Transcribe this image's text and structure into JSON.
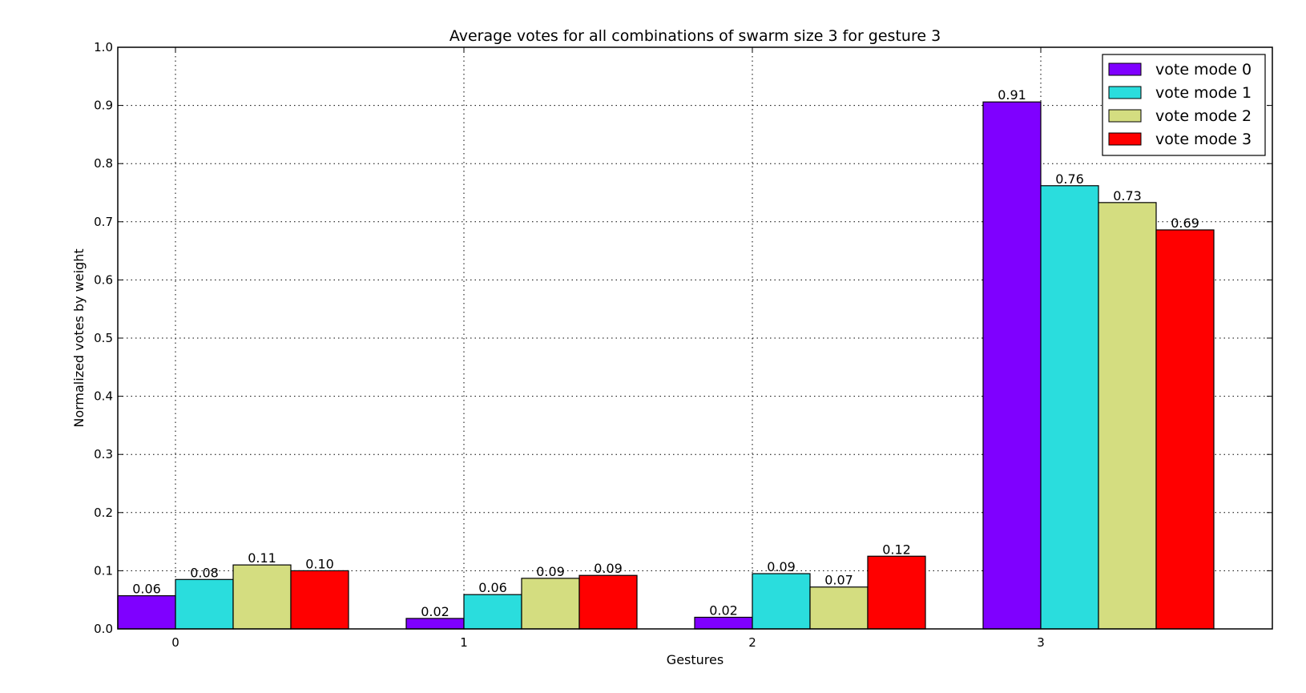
{
  "chart_data": {
    "type": "bar",
    "title": "Average votes for all combinations of swarm size 3 for gesture 3",
    "xlabel": "Gestures",
    "ylabel": "Normalized votes by weight",
    "categories": [
      "0",
      "1",
      "2",
      "3"
    ],
    "ylim": [
      0.0,
      1.0
    ],
    "yticks": [
      "0.0",
      "0.1",
      "0.2",
      "0.3",
      "0.4",
      "0.5",
      "0.6",
      "0.7",
      "0.8",
      "0.9",
      "1.0"
    ],
    "grid": true,
    "legend_position": "top-right",
    "series": [
      {
        "name": "vote mode 0",
        "color": "#7f00ff",
        "values": [
          0.057,
          0.018,
          0.02,
          0.906
        ],
        "labels": [
          "0.06",
          "0.02",
          "0.02",
          "0.91"
        ]
      },
      {
        "name": "vote mode 1",
        "color": "#2adddd",
        "values": [
          0.085,
          0.059,
          0.095,
          0.762
        ],
        "labels": [
          "0.08",
          "0.06",
          "0.09",
          "0.76"
        ]
      },
      {
        "name": "vote mode 2",
        "color": "#d4dd80",
        "values": [
          0.11,
          0.087,
          0.072,
          0.733
        ],
        "labels": [
          "0.11",
          "0.09",
          "0.07",
          "0.73"
        ]
      },
      {
        "name": "vote mode 3",
        "color": "#ff0000",
        "values": [
          0.1,
          0.092,
          0.125,
          0.686
        ],
        "labels": [
          "0.10",
          "0.09",
          "0.12",
          "0.69"
        ]
      }
    ]
  }
}
